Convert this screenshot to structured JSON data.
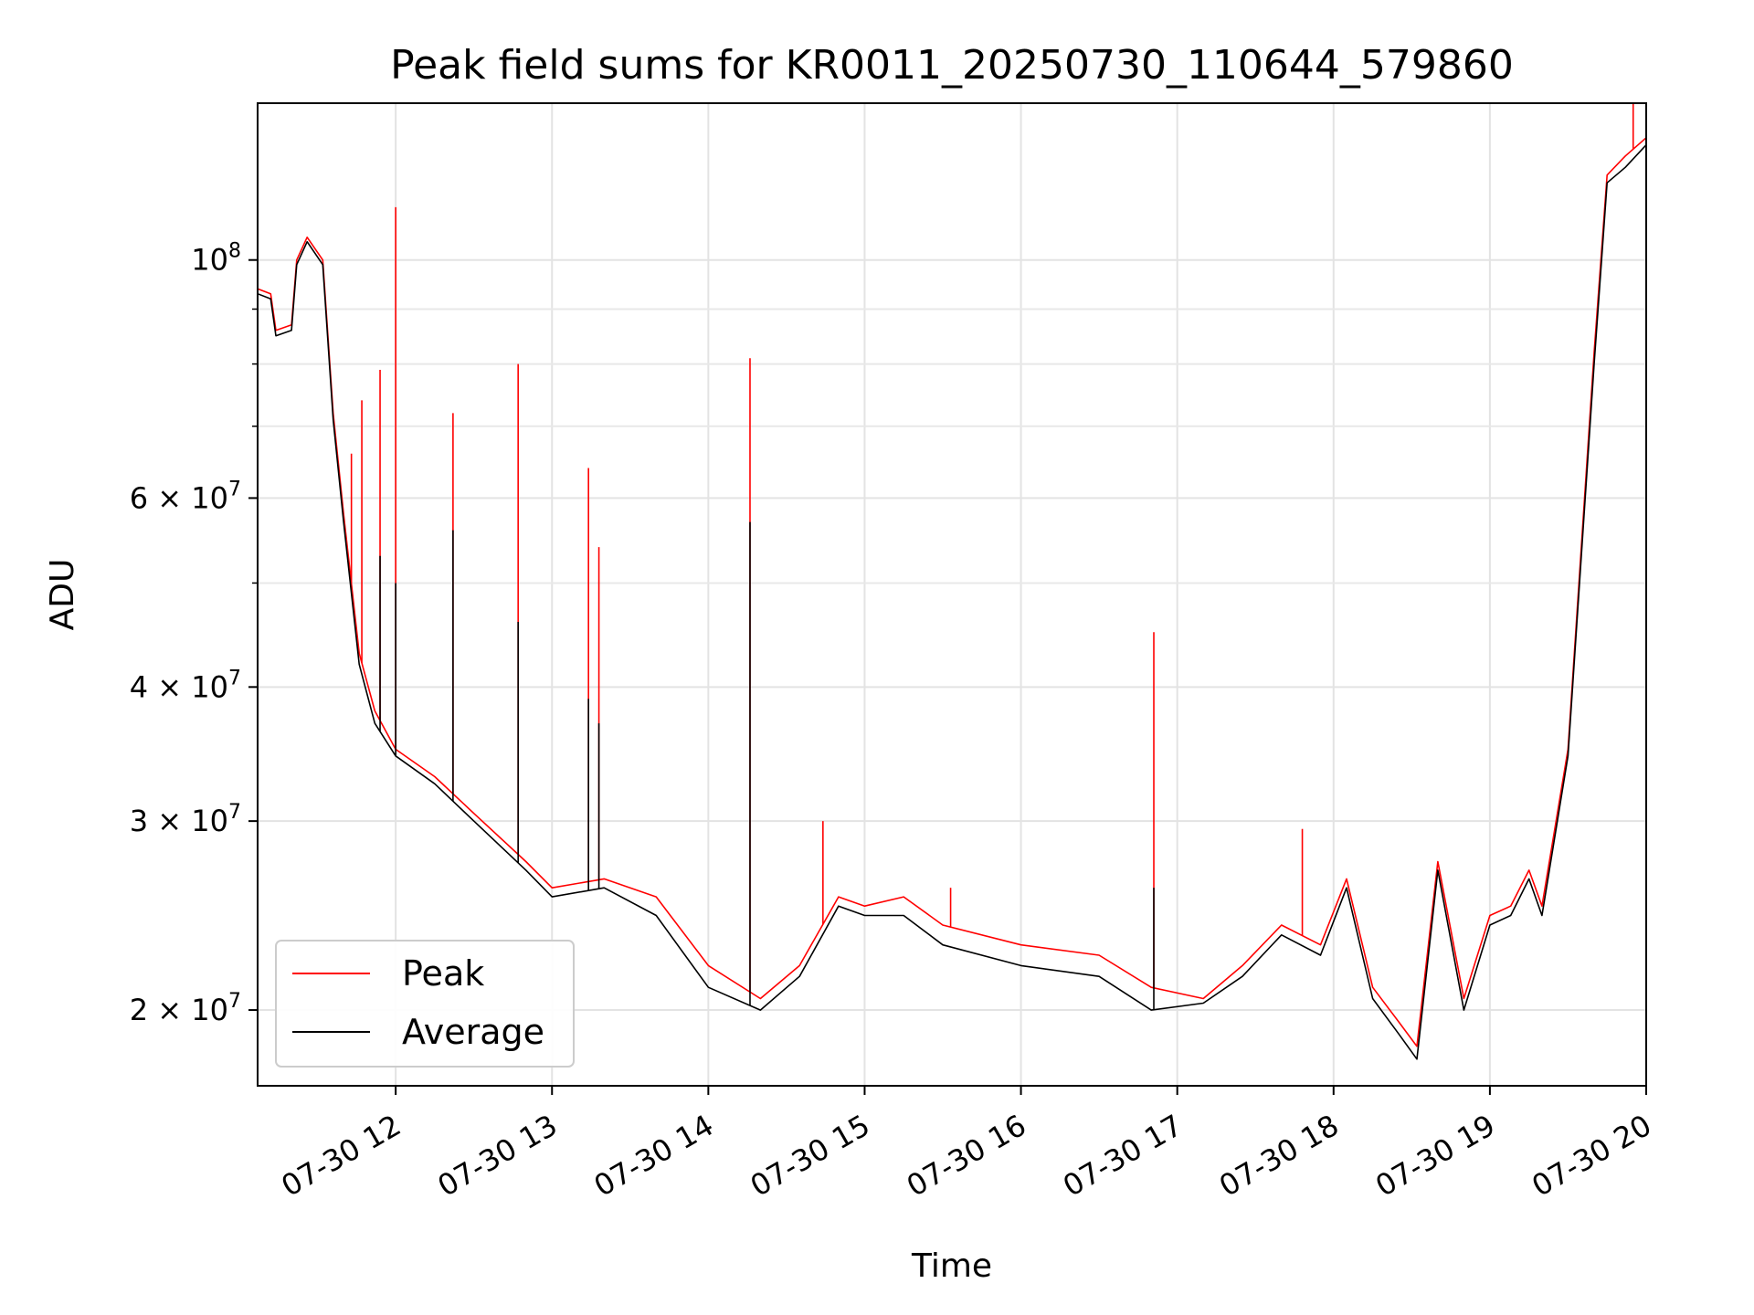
{
  "chart_data": {
    "type": "line",
    "title": "Peak field sums for KR0011_20250730_110644_579860",
    "xlabel": "Time",
    "ylabel": "ADU",
    "y_scale": "log",
    "grid": true,
    "legend_position": "lower-left",
    "x_range": [
      "2025-07-30 11:07",
      "2025-07-30 20:00"
    ],
    "y_range": [
      17000000,
      140000000
    ],
    "x_tick_labels": [
      "07-30 12",
      "07-30 13",
      "07-30 14",
      "07-30 15",
      "07-30 16",
      "07-30 17",
      "07-30 18",
      "07-30 19",
      "07-30 20"
    ],
    "x_tick_times": [
      "2025-07-30 12:00",
      "2025-07-30 13:00",
      "2025-07-30 14:00",
      "2025-07-30 15:00",
      "2025-07-30 16:00",
      "2025-07-30 17:00",
      "2025-07-30 18:00",
      "2025-07-30 19:00",
      "2025-07-30 20:00"
    ],
    "y_ticks": [
      {
        "value": 20000000,
        "mant": "2",
        "exp": "7"
      },
      {
        "value": 30000000,
        "mant": "3",
        "exp": "7"
      },
      {
        "value": 40000000,
        "mant": "4",
        "exp": "7"
      },
      {
        "value": 60000000,
        "mant": "6",
        "exp": "7"
      },
      {
        "value": 100000000,
        "mant": "",
        "exp": "8"
      }
    ],
    "y_minor_grid": [
      50000000,
      70000000,
      80000000,
      90000000
    ],
    "series": [
      {
        "name": "Peak",
        "color": "#ff0000",
        "x": [
          "2025-07-30 11:07",
          "2025-07-30 11:12",
          "2025-07-30 11:14",
          "2025-07-30 11:20",
          "2025-07-30 11:22",
          "2025-07-30 11:26",
          "2025-07-30 11:32",
          "2025-07-30 11:36",
          "2025-07-30 11:40",
          "2025-07-30 11:46",
          "2025-07-30 11:52",
          "2025-07-30 12:00",
          "2025-07-30 12:15",
          "2025-07-30 12:30",
          "2025-07-30 12:50",
          "2025-07-30 13:00",
          "2025-07-30 13:20",
          "2025-07-30 13:40",
          "2025-07-30 14:00",
          "2025-07-30 14:20",
          "2025-07-30 14:35",
          "2025-07-30 14:50",
          "2025-07-30 15:00",
          "2025-07-30 15:15",
          "2025-07-30 15:30",
          "2025-07-30 16:00",
          "2025-07-30 16:30",
          "2025-07-30 16:50",
          "2025-07-30 17:10",
          "2025-07-30 17:25",
          "2025-07-30 17:40",
          "2025-07-30 17:55",
          "2025-07-30 18:05",
          "2025-07-30 18:15",
          "2025-07-30 18:25",
          "2025-07-30 18:32",
          "2025-07-30 18:40",
          "2025-07-30 18:50",
          "2025-07-30 19:00",
          "2025-07-30 19:08",
          "2025-07-30 19:15",
          "2025-07-30 19:20",
          "2025-07-30 19:30",
          "2025-07-30 19:40",
          "2025-07-30 19:45",
          "2025-07-30 19:52",
          "2025-07-30 20:00"
        ],
        "y": [
          94000000,
          93000000,
          86000000,
          87000000,
          100000000,
          105000000,
          100000000,
          72000000,
          58000000,
          43000000,
          38000000,
          35000000,
          33000000,
          30500000,
          27500000,
          26000000,
          26500000,
          25500000,
          22000000,
          20500000,
          22000000,
          25500000,
          25000000,
          25500000,
          24000000,
          23000000,
          22500000,
          21000000,
          20500000,
          22000000,
          24000000,
          23000000,
          26500000,
          21000000,
          19500000,
          18500000,
          27500000,
          20500000,
          24500000,
          25000000,
          27000000,
          25000000,
          35000000,
          82000000,
          120000000,
          125000000,
          130000000
        ],
        "spikes": [
          {
            "x": "2025-07-30 11:43",
            "y": 66000000
          },
          {
            "x": "2025-07-30 11:47",
            "y": 74000000
          },
          {
            "x": "2025-07-30 11:54",
            "y": 79000000
          },
          {
            "x": "2025-07-30 12:00",
            "y": 112000000
          },
          {
            "x": "2025-07-30 12:22",
            "y": 72000000
          },
          {
            "x": "2025-07-30 12:47",
            "y": 80000000
          },
          {
            "x": "2025-07-30 13:14",
            "y": 64000000
          },
          {
            "x": "2025-07-30 13:18",
            "y": 54000000
          },
          {
            "x": "2025-07-30 14:16",
            "y": 81000000
          },
          {
            "x": "2025-07-30 14:44",
            "y": 30000000
          },
          {
            "x": "2025-07-30 15:33",
            "y": 26000000
          },
          {
            "x": "2025-07-30 16:51",
            "y": 45000000
          },
          {
            "x": "2025-07-30 17:48",
            "y": 29500000
          },
          {
            "x": "2025-07-30 19:55",
            "y": 140000000
          }
        ]
      },
      {
        "name": "Average",
        "color": "#000000",
        "x": [
          "2025-07-30 11:07",
          "2025-07-30 11:12",
          "2025-07-30 11:14",
          "2025-07-30 11:20",
          "2025-07-30 11:22",
          "2025-07-30 11:26",
          "2025-07-30 11:32",
          "2025-07-30 11:36",
          "2025-07-30 11:40",
          "2025-07-30 11:46",
          "2025-07-30 11:52",
          "2025-07-30 12:00",
          "2025-07-30 12:15",
          "2025-07-30 12:30",
          "2025-07-30 12:50",
          "2025-07-30 13:00",
          "2025-07-30 13:20",
          "2025-07-30 13:40",
          "2025-07-30 14:00",
          "2025-07-30 14:20",
          "2025-07-30 14:35",
          "2025-07-30 14:50",
          "2025-07-30 15:00",
          "2025-07-30 15:15",
          "2025-07-30 15:30",
          "2025-07-30 16:00",
          "2025-07-30 16:30",
          "2025-07-30 16:50",
          "2025-07-30 17:10",
          "2025-07-30 17:25",
          "2025-07-30 17:40",
          "2025-07-30 17:55",
          "2025-07-30 18:05",
          "2025-07-30 18:15",
          "2025-07-30 18:25",
          "2025-07-30 18:32",
          "2025-07-30 18:40",
          "2025-07-30 18:50",
          "2025-07-30 19:00",
          "2025-07-30 19:08",
          "2025-07-30 19:15",
          "2025-07-30 19:20",
          "2025-07-30 19:30",
          "2025-07-30 19:40",
          "2025-07-30 19:45",
          "2025-07-30 19:52",
          "2025-07-30 20:00"
        ],
        "y": [
          93000000,
          92000000,
          85000000,
          86000000,
          99000000,
          104000000,
          99000000,
          71000000,
          57000000,
          42000000,
          37000000,
          34500000,
          32500000,
          30000000,
          27000000,
          25500000,
          26000000,
          24500000,
          21000000,
          20000000,
          21500000,
          25000000,
          24500000,
          24500000,
          23000000,
          22000000,
          21500000,
          20000000,
          20300000,
          21500000,
          23500000,
          22500000,
          26000000,
          20500000,
          19000000,
          18000000,
          27000000,
          20000000,
          24000000,
          24500000,
          26500000,
          24500000,
          34500000,
          80000000,
          118000000,
          122000000,
          128000000
        ],
        "spikes": [
          {
            "x": "2025-07-30 11:54",
            "y": 53000000
          },
          {
            "x": "2025-07-30 12:00",
            "y": 50000000
          },
          {
            "x": "2025-07-30 12:22",
            "y": 56000000
          },
          {
            "x": "2025-07-30 12:47",
            "y": 46000000
          },
          {
            "x": "2025-07-30 13:14",
            "y": 39000000
          },
          {
            "x": "2025-07-30 13:18",
            "y": 37000000
          },
          {
            "x": "2025-07-30 14:16",
            "y": 57000000
          },
          {
            "x": "2025-07-30 16:51",
            "y": 26000000
          }
        ]
      }
    ]
  }
}
